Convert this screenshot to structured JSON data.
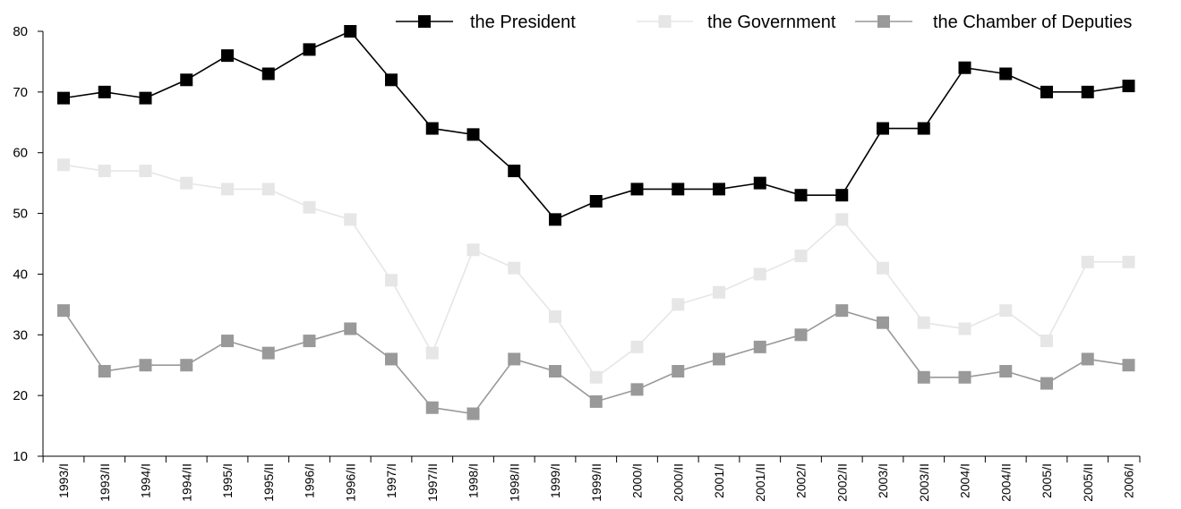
{
  "chart_data": {
    "type": "line",
    "title": "",
    "xlabel": "",
    "ylabel": "",
    "ylim": [
      10,
      80
    ],
    "yticks": [
      10,
      20,
      30,
      40,
      50,
      60,
      70,
      80
    ],
    "grid": false,
    "legend_position": "top",
    "categories": [
      "1993/I",
      "1993/II",
      "1994/I",
      "1994/II",
      "1995/I",
      "1995/II",
      "1996/I",
      "1996/II",
      "1997/I",
      "1997/II",
      "1998/I",
      "1998/II",
      "1999/I",
      "1999/II",
      "2000/I",
      "2000/II",
      "2001/I",
      "2001/II",
      "2002/I",
      "2002/II",
      "2003/I",
      "2003/II",
      "2004/I",
      "2004/II",
      "2005/I",
      "2005/II",
      "2006/I"
    ],
    "series": [
      {
        "name": "the President",
        "color": "#000000",
        "values": [
          69,
          70,
          69,
          72,
          76,
          73,
          77,
          80,
          72,
          64,
          63,
          57,
          49,
          52,
          54,
          54,
          54,
          55,
          53,
          53,
          64,
          64,
          74,
          73,
          70,
          70,
          71
        ]
      },
      {
        "name": "the Government",
        "color": "#e6e6e6",
        "values": [
          58,
          57,
          57,
          55,
          54,
          54,
          51,
          49,
          39,
          27,
          44,
          41,
          33,
          23,
          28,
          35,
          37,
          40,
          43,
          49,
          41,
          32,
          31,
          34,
          29,
          42,
          42
        ]
      },
      {
        "name": "the Chamber of Deputies",
        "color": "#999999",
        "values": [
          34,
          24,
          25,
          25,
          29,
          27,
          29,
          31,
          26,
          18,
          17,
          26,
          24,
          19,
          21,
          24,
          26,
          28,
          30,
          34,
          32,
          23,
          23,
          24,
          22,
          26,
          25
        ]
      }
    ]
  }
}
